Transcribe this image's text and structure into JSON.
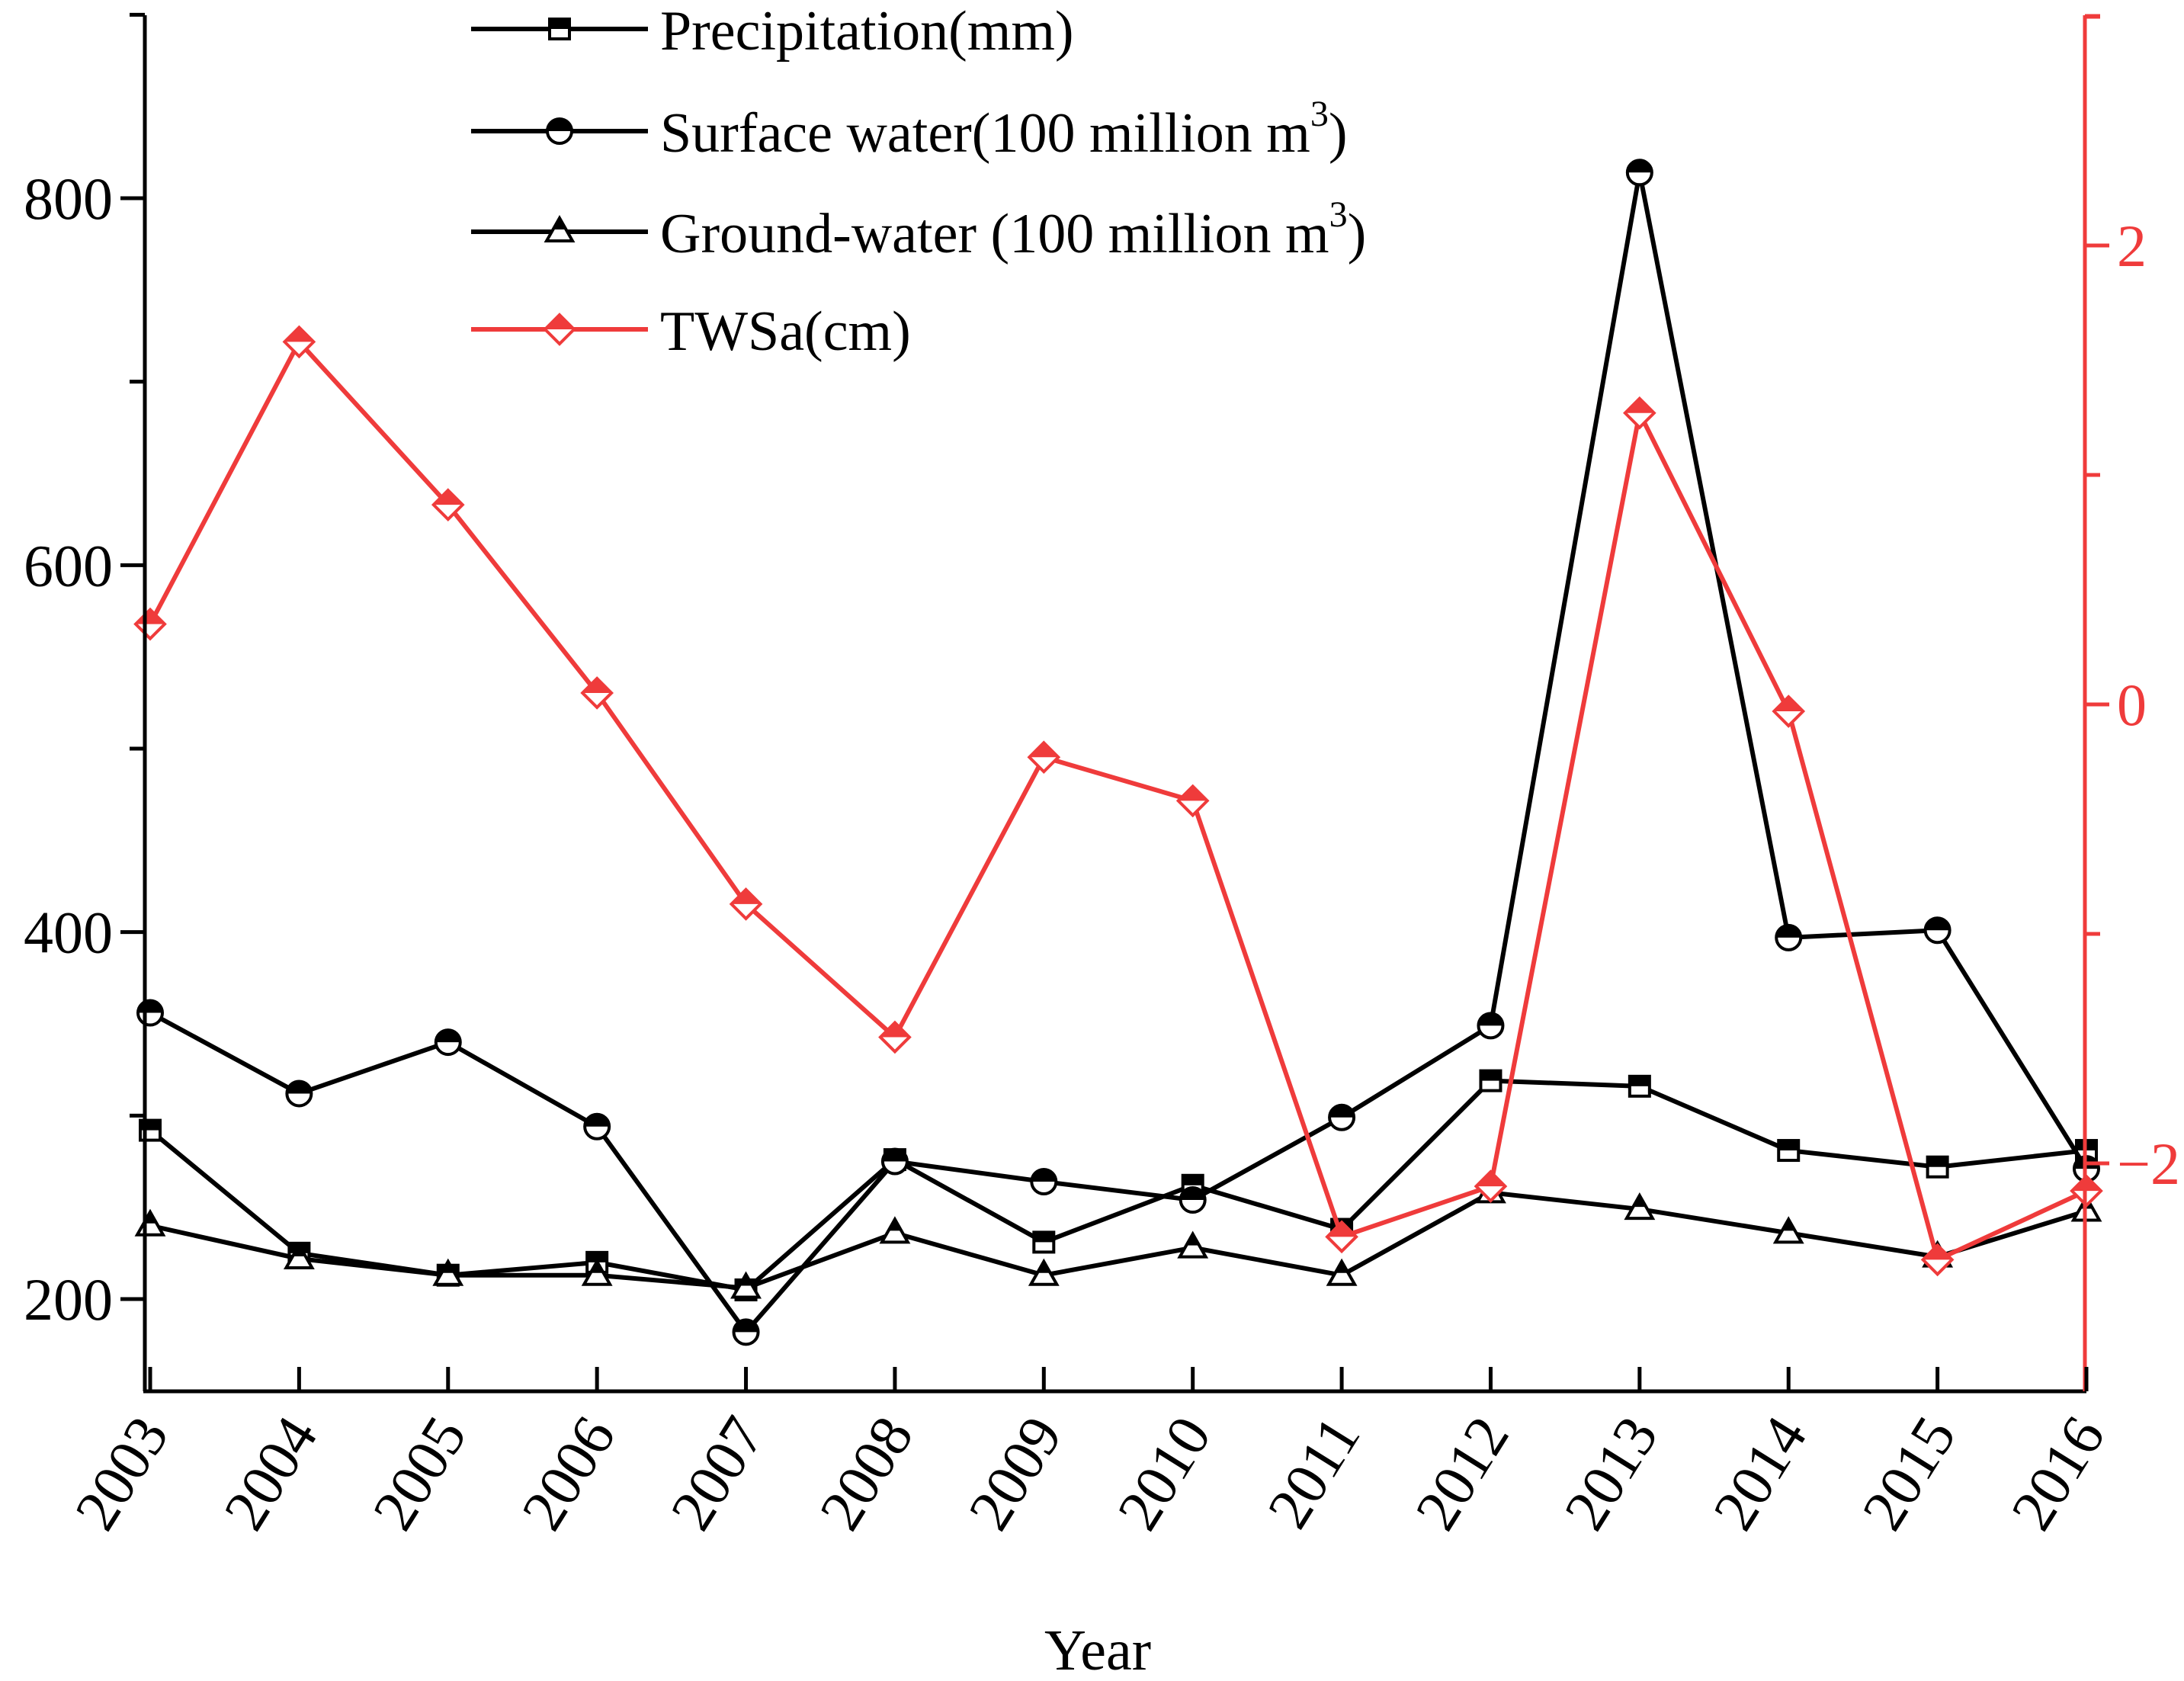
{
  "chart_data": {
    "type": "line",
    "xlabel": "Year",
    "x": [
      "2003",
      "2004",
      "2005",
      "2006",
      "2007",
      "2008",
      "2009",
      "2010",
      "2011",
      "2012",
      "2013",
      "2014",
      "2015",
      "2016"
    ],
    "left_axis": {
      "range": [
        150,
        900
      ],
      "ticks": [
        200,
        400,
        600,
        800
      ],
      "tick_labels": [
        "200",
        "400",
        "600",
        "800"
      ],
      "color": "#000000"
    },
    "right_axis": {
      "range": [
        -3,
        3
      ],
      "ticks": [
        -2,
        0,
        2
      ],
      "tick_labels": [
        "−2",
        "0",
        "2"
      ],
      "color": "#ef3b3b"
    },
    "legend_position": "top-center",
    "series": [
      {
        "name": "Precipitation(mm)",
        "axis": "left",
        "marker": "square",
        "color": "#000000",
        "values": [
          292,
          225,
          213,
          220,
          205,
          276,
          231,
          262,
          238,
          319,
          316,
          281,
          272,
          281
        ]
      },
      {
        "name": "Surface water(100 million m³)",
        "name_base": "Surface water(100 million m",
        "name_sup": "3",
        "name_close": ")",
        "axis": "left",
        "marker": "circle",
        "color": "#000000",
        "values": [
          356,
          312,
          340,
          294,
          182,
          275,
          264,
          254,
          299,
          349,
          814,
          397,
          401,
          271
        ]
      },
      {
        "name": "Ground-water (100 million m³)",
        "name_base": "Ground-water (100 million m",
        "name_sup": "3",
        "name_close": ")",
        "axis": "left",
        "marker": "triangle",
        "color": "#000000",
        "values": [
          240,
          222,
          213,
          213,
          206,
          236,
          213,
          228,
          213,
          258,
          249,
          236,
          223,
          248
        ]
      },
      {
        "name": "TWSa(cm)",
        "axis": "right",
        "marker": "diamond",
        "color": "#ef3b3b",
        "values": [
          0.35,
          1.58,
          0.87,
          0.05,
          -0.87,
          -1.45,
          -0.23,
          -0.42,
          -2.32,
          -2.1,
          1.27,
          -0.03,
          -2.42,
          -2.12
        ]
      }
    ]
  }
}
